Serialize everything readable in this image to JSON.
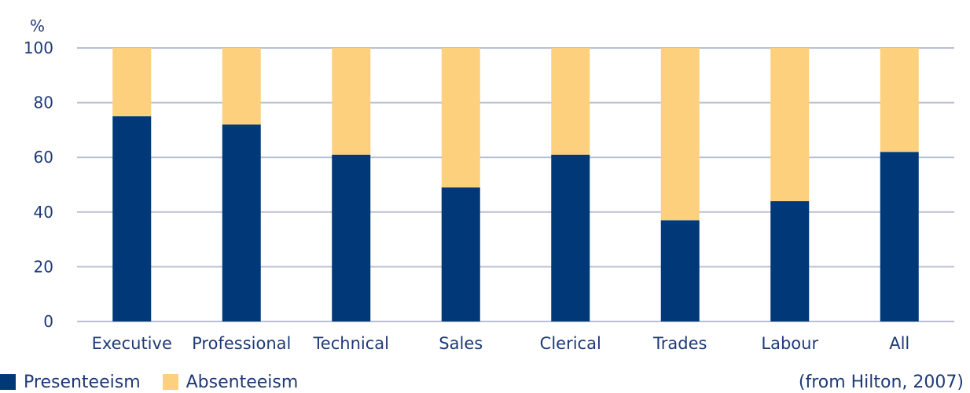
{
  "chart_data": {
    "type": "bar",
    "stacked": true,
    "ylabel": "%",
    "ylim": [
      0,
      100
    ],
    "yticks": [
      0,
      20,
      40,
      60,
      80,
      100
    ],
    "grid": true,
    "categories": [
      "Executive",
      "Professional",
      "Technical",
      "Sales",
      "Clerical",
      "Trades",
      "Labour",
      "All"
    ],
    "series": [
      {
        "name": "Presenteeism",
        "color": "#003878",
        "values": [
          75,
          72,
          61,
          49,
          61,
          37,
          44,
          62
        ]
      },
      {
        "name": "Absenteeism",
        "color": "#FDD07E",
        "values": [
          25,
          28,
          39,
          51,
          39,
          63,
          56,
          38
        ]
      }
    ],
    "legend_position": "bottom-left",
    "source_note": "(from Hilton, 2007)"
  }
}
